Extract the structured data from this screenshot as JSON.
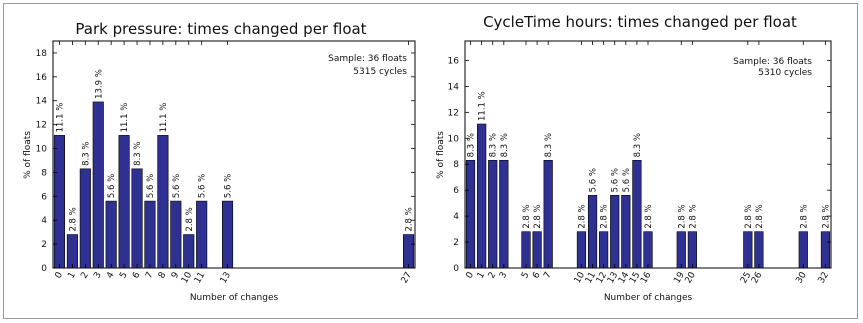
{
  "chart_data": [
    {
      "type": "bar",
      "title": "Park pressure: times changed per float",
      "xlabel": "Number of changes",
      "ylabel": "% of floats",
      "ylim": [
        0,
        19
      ],
      "yticks": [
        0,
        2,
        4,
        6,
        8,
        10,
        12,
        14,
        16,
        18
      ],
      "xlim": [
        -0.5,
        27.5
      ],
      "xticks": [
        0,
        1,
        2,
        3,
        4,
        5,
        6,
        7,
        8,
        9,
        10,
        11,
        13,
        27
      ],
      "sample_text": [
        "Sample: 36 floats",
        "5315 cycles"
      ],
      "bars": [
        {
          "x": 0,
          "value": 11.1,
          "label": "11.1 %"
        },
        {
          "x": 1,
          "value": 2.8,
          "label": "2.8 %"
        },
        {
          "x": 2,
          "value": 8.3,
          "label": "8.3 %"
        },
        {
          "x": 3,
          "value": 13.9,
          "label": "13.9 %"
        },
        {
          "x": 4,
          "value": 5.6,
          "label": "5.6 %"
        },
        {
          "x": 5,
          "value": 11.1,
          "label": "11.1 %"
        },
        {
          "x": 6,
          "value": 8.3,
          "label": "8.3 %"
        },
        {
          "x": 7,
          "value": 5.6,
          "label": "5.6 %"
        },
        {
          "x": 8,
          "value": 11.1,
          "label": "11.1 %"
        },
        {
          "x": 9,
          "value": 5.6,
          "label": "5.6 %"
        },
        {
          "x": 10,
          "value": 2.8,
          "label": "2.8 %"
        },
        {
          "x": 11,
          "value": 5.6,
          "label": "5.6 %"
        },
        {
          "x": 13,
          "value": 5.6,
          "label": "5.6 %"
        },
        {
          "x": 27,
          "value": 2.8,
          "label": "2.8 %"
        }
      ],
      "grid": false,
      "bar_color": "#2e3192"
    },
    {
      "type": "bar",
      "title": "CycleTime hours: times changed per float",
      "xlabel": "Number of changes",
      "ylabel": "% of floats",
      "ylim": [
        0,
        17.5
      ],
      "yticks": [
        0,
        2,
        4,
        6,
        8,
        10,
        12,
        14,
        16
      ],
      "xlim": [
        -0.5,
        32.5
      ],
      "xticks": [
        0,
        1,
        2,
        3,
        5,
        6,
        7,
        10,
        11,
        12,
        13,
        14,
        15,
        16,
        19,
        20,
        25,
        26,
        30,
        32
      ],
      "sample_text": [
        "Sample: 36 floats",
        "5310 cycles"
      ],
      "bars": [
        {
          "x": 0,
          "value": 8.3,
          "label": "8.3 %"
        },
        {
          "x": 1,
          "value": 11.1,
          "label": "11.1 %"
        },
        {
          "x": 2,
          "value": 8.3,
          "label": "8.3 %"
        },
        {
          "x": 3,
          "value": 8.3,
          "label": "8.3 %"
        },
        {
          "x": 5,
          "value": 2.8,
          "label": "2.8 %"
        },
        {
          "x": 6,
          "value": 2.8,
          "label": "2.8 %"
        },
        {
          "x": 7,
          "value": 8.3,
          "label": "8.3 %"
        },
        {
          "x": 10,
          "value": 2.8,
          "label": "2.8 %"
        },
        {
          "x": 11,
          "value": 5.6,
          "label": "5.6 %"
        },
        {
          "x": 12,
          "value": 2.8,
          "label": "2.8 %"
        },
        {
          "x": 13,
          "value": 5.6,
          "label": "5.6 %"
        },
        {
          "x": 14,
          "value": 5.6,
          "label": "5.6 %"
        },
        {
          "x": 15,
          "value": 8.3,
          "label": "8.3 %"
        },
        {
          "x": 16,
          "value": 2.8,
          "label": "2.8 %"
        },
        {
          "x": 19,
          "value": 2.8,
          "label": "2.8 %"
        },
        {
          "x": 20,
          "value": 2.8,
          "label": "2.8 %"
        },
        {
          "x": 25,
          "value": 2.8,
          "label": "2.8 %"
        },
        {
          "x": 26,
          "value": 2.8,
          "label": "2.8 %"
        },
        {
          "x": 30,
          "value": 2.8,
          "label": "2.8 %"
        },
        {
          "x": 32,
          "value": 2.8,
          "label": "2.8 %"
        }
      ],
      "grid": false,
      "bar_color": "#2e3192"
    }
  ]
}
